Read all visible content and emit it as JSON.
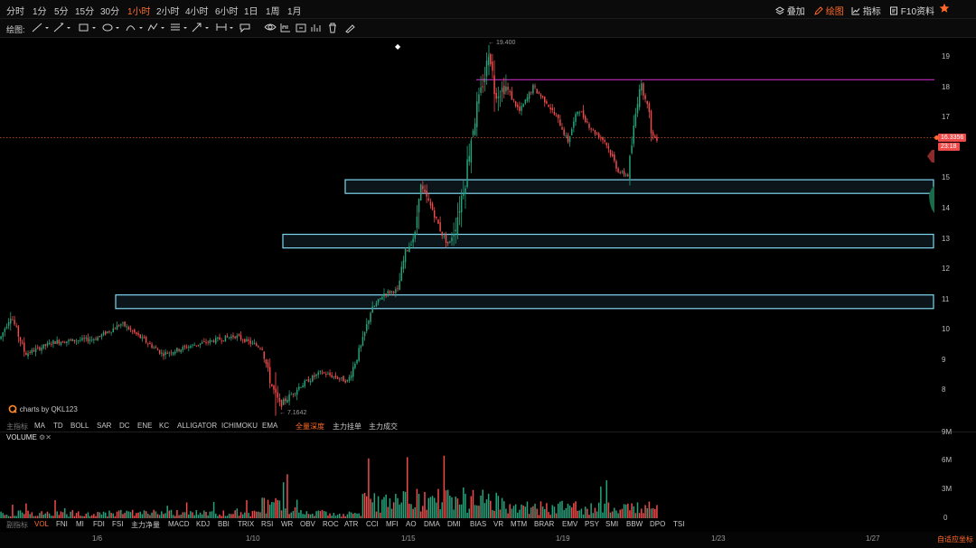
{
  "timeframes": [
    "分时",
    "1分",
    "5分",
    "15分",
    "30分",
    "1小时",
    "2小时",
    "4小时",
    "6小时",
    "1日",
    "1周",
    "1月"
  ],
  "active_timeframe": "1小时",
  "top_right": {
    "overlay_label": "叠加",
    "draw_label": "绘图",
    "indicator_label": "指标",
    "f10_label": "F10资料"
  },
  "draw_toolbar": {
    "label": "绘图:",
    "tools": [
      "line-tool-icon",
      "ray-tool-icon",
      "rectangle-tool-icon",
      "ellipse-tool-icon",
      "curve-tool-icon",
      "pattern-tool-icon",
      "fib-tool-icon",
      "arrow-tool-icon",
      "range-tool-icon",
      "text-tool-icon",
      "eye-icon",
      "measure-icon",
      "snapshot-icon",
      "bar-stats-icon",
      "trash-icon",
      "brush-icon"
    ]
  },
  "price_axis": {
    "ticks": [
      "19",
      "18",
      "17",
      "16",
      "15",
      "14",
      "13",
      "12",
      "11",
      "10",
      "9",
      "8"
    ],
    "current_price": "16.3356",
    "countdown": "23:18"
  },
  "chart_annotations": {
    "high_label": "← 19.400",
    "low_label": "← 7.1642",
    "watermark": "charts by QKL123"
  },
  "main_indicators": {
    "label": "主指标",
    "items": [
      "MA",
      "TD",
      "BOLL",
      "SAR",
      "DC",
      "ENE",
      "KC",
      "ALLIGATOR",
      "ICHIMOKU",
      "EMA"
    ],
    "extras": [
      "全量深度",
      "主力挂单",
      "主力成交"
    ],
    "active_extra": "全量深度"
  },
  "volume_panel": {
    "title": "VOLUME",
    "ticks": [
      "9M",
      "6M",
      "3M",
      "0"
    ]
  },
  "sub_indicators": {
    "label": "副指标",
    "items": [
      "VOL",
      "FNI",
      "MI",
      "FDI",
      "FSI",
      "主力净量",
      "MACD",
      "KDJ",
      "BBI",
      "TRIX",
      "RSI",
      "WR",
      "OBV",
      "ROC",
      "ATR",
      "CCI",
      "MFI",
      "AO",
      "DMA",
      "DMI",
      "BIAS",
      "VR",
      "MTM",
      "BRAR",
      "EMV",
      "PSY",
      "SMI",
      "BBW",
      "DPO",
      "TSI"
    ],
    "active": "VOL"
  },
  "date_axis": {
    "labels": [
      "1/6",
      "1/10",
      "1/15",
      "1/19",
      "1/23",
      "1/27"
    ],
    "auto_fit": "自适应坐标"
  },
  "colors": {
    "up": "#26a27b",
    "down": "#f04b4b",
    "accent": "#ff6a2a",
    "zone_border": "#7fd6f0",
    "resistance_line": "#c02ac0"
  },
  "chart_data": {
    "type": "candlestick",
    "timeframe": "1小时",
    "price_range": [
      7.0,
      19.6
    ],
    "high": 19.4,
    "low": 7.1642,
    "current_price": 16.3356,
    "resistance_line": 18.25,
    "support_zones": [
      {
        "from_date": "1/15",
        "top": 14.95,
        "bottom": 14.5
      },
      {
        "from_date": "1/13",
        "top": 13.15,
        "bottom": 12.7
      },
      {
        "from_date": "1/8",
        "top": 11.15,
        "bottom": 10.7
      }
    ],
    "price_path": [
      {
        "date": "1/4",
        "close": 9.5
      },
      {
        "date": "1/5",
        "close": 9.9
      },
      {
        "date": "1/6",
        "close": 9.6
      },
      {
        "date": "1/7",
        "close": 9.9
      },
      {
        "date": "1/8",
        "close": 10.1
      },
      {
        "date": "1/9",
        "close": 9.4
      },
      {
        "date": "1/10",
        "close": 9.6
      },
      {
        "date": "1/11",
        "close": 7.5
      },
      {
        "date": "1/12",
        "close": 8.3
      },
      {
        "date": "1/13",
        "close": 10.5
      },
      {
        "date": "1/14",
        "close": 12.5
      },
      {
        "date": "1/15",
        "close": 14.0
      },
      {
        "date": "1/16",
        "close": 15.0
      },
      {
        "date": "1/17",
        "close": 18.5
      },
      {
        "date": "1/18",
        "close": 17.5
      },
      {
        "date": "1/19",
        "close": 17.1
      },
      {
        "date": "1/20",
        "close": 15.1
      },
      {
        "date": "1/21",
        "close": 16.3
      }
    ],
    "volume_range": [
      0,
      9
    ],
    "volume_unit": "M",
    "volume_peak": 7.6
  }
}
